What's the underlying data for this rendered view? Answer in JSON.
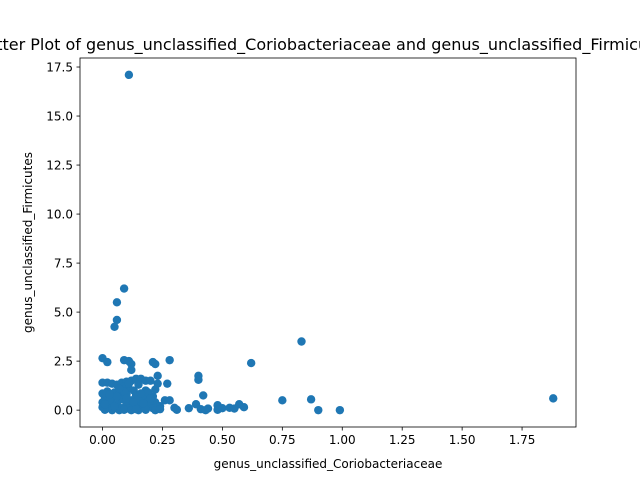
{
  "chart_data": {
    "type": "scatter",
    "title": "Scatter Plot of genus_unclassified_Coriobacteriaceae and genus_unclassified_Firmicutes",
    "xlabel": "genus_unclassified_Coriobacteriaceae",
    "ylabel": "genus_unclassified_Firmicutes",
    "xlim": [
      -0.094,
      1.975
    ],
    "ylim": [
      -0.86,
      17.96
    ],
    "xticks": [
      0.0,
      0.25,
      0.5,
      0.75,
      1.0,
      1.25,
      1.5,
      1.75
    ],
    "xtick_labels": [
      "0.00",
      "0.25",
      "0.50",
      "0.75",
      "1.00",
      "1.25",
      "1.50",
      "1.75"
    ],
    "yticks": [
      0.0,
      2.5,
      5.0,
      7.5,
      10.0,
      12.5,
      15.0,
      17.5
    ],
    "ytick_labels": [
      "0.0",
      "2.5",
      "5.0",
      "7.5",
      "10.0",
      "12.5",
      "15.0",
      "17.5"
    ],
    "grid": false,
    "color": "#1f77b4",
    "points": [
      [
        0.11,
        17.1
      ],
      [
        0.09,
        6.2
      ],
      [
        0.06,
        5.5
      ],
      [
        0.06,
        4.6
      ],
      [
        0.05,
        4.25
      ],
      [
        0.83,
        3.5
      ],
      [
        0.0,
        2.65
      ],
      [
        0.02,
        2.45
      ],
      [
        0.09,
        2.55
      ],
      [
        0.11,
        2.5
      ],
      [
        0.12,
        2.35
      ],
      [
        0.21,
        2.45
      ],
      [
        0.22,
        2.35
      ],
      [
        0.28,
        2.55
      ],
      [
        0.62,
        2.4
      ],
      [
        0.12,
        2.05
      ],
      [
        0.23,
        1.75
      ],
      [
        0.4,
        1.75
      ],
      [
        0.4,
        1.55
      ],
      [
        0.0,
        1.4
      ],
      [
        0.02,
        1.4
      ],
      [
        0.04,
        1.35
      ],
      [
        0.06,
        1.3
      ],
      [
        0.08,
        1.4
      ],
      [
        0.1,
        1.45
      ],
      [
        0.12,
        1.5
      ],
      [
        0.14,
        1.6
      ],
      [
        0.16,
        1.6
      ],
      [
        0.18,
        1.5
      ],
      [
        0.2,
        1.5
      ],
      [
        0.23,
        1.35
      ],
      [
        0.27,
        1.35
      ],
      [
        0.09,
        1.2
      ],
      [
        0.11,
        1.1
      ],
      [
        0.13,
        1.0
      ],
      [
        0.18,
        1.0
      ],
      [
        0.02,
        0.95
      ],
      [
        0.05,
        0.9
      ],
      [
        0.07,
        0.85
      ],
      [
        0.1,
        0.8
      ],
      [
        0.14,
        0.75
      ],
      [
        0.17,
        0.7
      ],
      [
        0.21,
        0.7
      ],
      [
        0.42,
        0.75
      ],
      [
        0.01,
        0.65
      ],
      [
        0.04,
        0.6
      ],
      [
        0.08,
        0.55
      ],
      [
        0.12,
        0.5
      ],
      [
        0.15,
        0.5
      ],
      [
        0.19,
        0.45
      ],
      [
        0.22,
        0.4
      ],
      [
        0.26,
        0.5
      ],
      [
        0.28,
        0.5
      ],
      [
        0.75,
        0.5
      ],
      [
        0.87,
        0.55
      ],
      [
        1.88,
        0.6
      ],
      [
        0.0,
        0.4
      ],
      [
        0.03,
        0.35
      ],
      [
        0.06,
        0.3
      ],
      [
        0.1,
        0.3
      ],
      [
        0.13,
        0.25
      ],
      [
        0.16,
        0.2
      ],
      [
        0.2,
        0.25
      ],
      [
        0.24,
        0.2
      ],
      [
        0.39,
        0.3
      ],
      [
        0.48,
        0.25
      ],
      [
        0.57,
        0.3
      ],
      [
        0.0,
        0.15
      ],
      [
        0.02,
        0.1
      ],
      [
        0.05,
        0.12
      ],
      [
        0.08,
        0.1
      ],
      [
        0.11,
        0.08
      ],
      [
        0.14,
        0.1
      ],
      [
        0.17,
        0.12
      ],
      [
        0.21,
        0.1
      ],
      [
        0.3,
        0.12
      ],
      [
        0.36,
        0.1
      ],
      [
        0.41,
        0.05
      ],
      [
        0.44,
        0.08
      ],
      [
        0.5,
        0.1
      ],
      [
        0.53,
        0.12
      ],
      [
        0.55,
        0.08
      ],
      [
        0.59,
        0.15
      ],
      [
        0.01,
        0.02
      ],
      [
        0.04,
        0.0
      ],
      [
        0.07,
        0.0
      ],
      [
        0.09,
        0.02
      ],
      [
        0.12,
        0.0
      ],
      [
        0.15,
        0.0
      ],
      [
        0.18,
        0.02
      ],
      [
        0.22,
        0.0
      ],
      [
        0.31,
        0.02
      ],
      [
        0.43,
        0.0
      ],
      [
        0.48,
        0.02
      ],
      [
        0.9,
        0.0
      ],
      [
        0.99,
        0.0
      ],
      [
        0.03,
        0.5
      ],
      [
        0.06,
        0.7
      ],
      [
        0.09,
        0.95
      ],
      [
        0.15,
        1.3
      ],
      [
        0.19,
        0.9
      ],
      [
        0.24,
        0.05
      ],
      [
        0.0,
        0.85
      ],
      [
        0.01,
        0.3
      ],
      [
        0.03,
        0.8
      ],
      [
        0.05,
        0.2
      ],
      [
        0.07,
        1.1
      ],
      [
        0.1,
        0.6
      ],
      [
        0.13,
        0.4
      ],
      [
        0.16,
        0.85
      ],
      [
        0.2,
        0.6
      ],
      [
        0.22,
        1.05
      ],
      [
        0.11,
        1.35
      ],
      [
        0.14,
        0.05
      ],
      [
        0.17,
        0.35
      ]
    ]
  }
}
